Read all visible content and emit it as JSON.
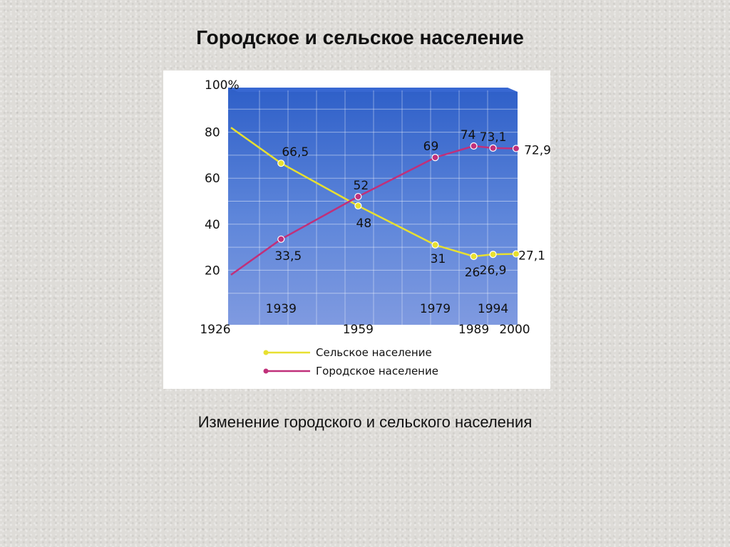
{
  "slide": {
    "title": "Городское и сельское население",
    "caption": "Изменение городского и сельского населения"
  },
  "colors": {
    "rural": "#E8E030",
    "urban": "#C0307A",
    "chart_bg_top": "#2E5FC8",
    "chart_bg_bottom": "#7F9AE0"
  },
  "chart_data": {
    "type": "line",
    "title": "",
    "xlabel": "",
    "ylabel": "",
    "ylim": [
      0,
      100
    ],
    "yticks": [
      {
        "value": 100,
        "label": "100%"
      },
      {
        "value": 80,
        "label": "80"
      },
      {
        "value": 60,
        "label": "60"
      },
      {
        "value": 40,
        "label": "40"
      },
      {
        "value": 20,
        "label": "20"
      }
    ],
    "grid": true,
    "x": [
      1926,
      1939,
      1959,
      1979,
      1989,
      1994,
      2000
    ],
    "x_labels": [
      "1926",
      "1939",
      "1959",
      "1979",
      "1989",
      "1994",
      "2000"
    ],
    "series": [
      {
        "name": "Сельское население",
        "color": "#E8E030",
        "values": [
          82,
          66.5,
          48,
          31,
          26,
          26.9,
          27.1
        ],
        "point_labels": [
          "",
          "66,5",
          "48",
          "31",
          "26",
          "26,9",
          "27,1"
        ]
      },
      {
        "name": "Городское население",
        "color": "#C0307A",
        "values": [
          18,
          33.5,
          52,
          69,
          74,
          73.1,
          72.9
        ],
        "point_labels": [
          "",
          "33,5",
          "52",
          "69",
          "74",
          "73,1",
          "72,9"
        ]
      }
    ],
    "legend": "bottom"
  }
}
